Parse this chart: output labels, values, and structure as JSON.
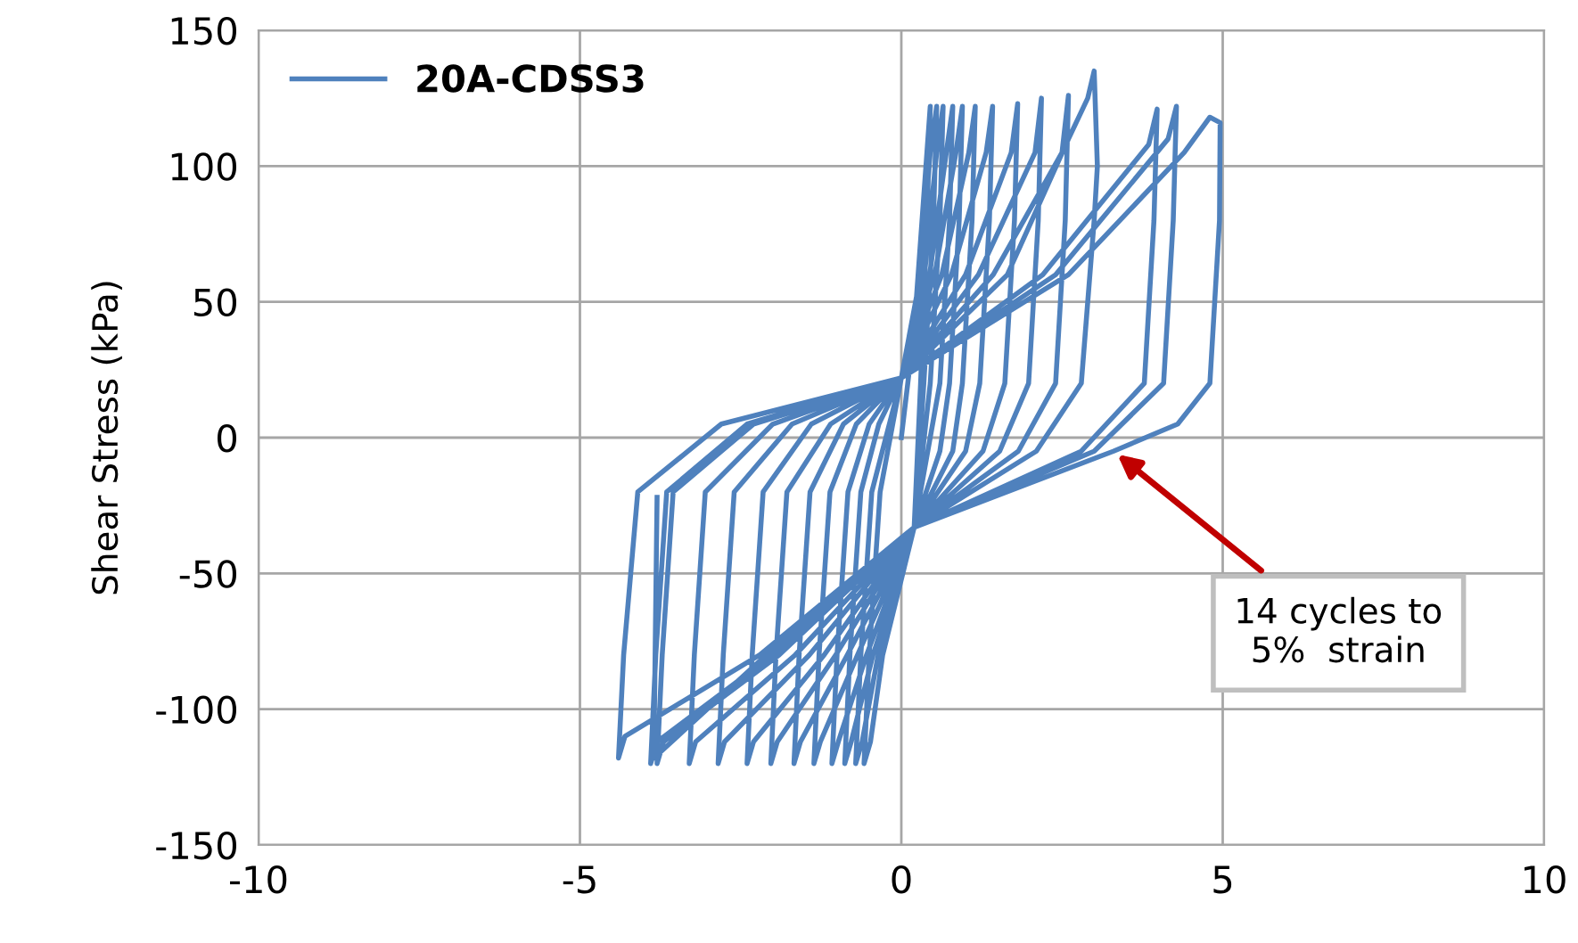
{
  "chart_data": {
    "type": "line",
    "ylabel": "Shear Stress (kPa)",
    "xlim": [
      -10,
      10
    ],
    "xticks": [
      -10,
      -5,
      0,
      5,
      10
    ],
    "ylim": [
      -150,
      150
    ],
    "yticks": [
      -150,
      -100,
      -50,
      0,
      50,
      100,
      150
    ],
    "grid": true,
    "legend": "top left",
    "marker": "none",
    "line_style": "solid",
    "series": [
      {
        "name": "20A-CDSS3",
        "color": "#4f81bd",
        "x": [
          0,
          0.2,
          0.45,
          0.4,
          0.3,
          0.2,
          -0.29,
          -0.48,
          -0.58,
          -0.5,
          -0.33,
          0,
          0.3,
          0.45,
          0.55,
          0.5,
          0.35,
          0.2,
          -0.36,
          -0.61,
          -0.71,
          -0.63,
          -0.46,
          0,
          0.36,
          0.55,
          0.65,
          0.6,
          0.45,
          0.2,
          -0.44,
          -0.78,
          -0.88,
          -0.8,
          -0.63,
          -0.35,
          0,
          0.44,
          0.7,
          0.8,
          0.75,
          0.6,
          0.2,
          -0.54,
          -0.98,
          -1.08,
          -1.0,
          -0.83,
          -0.5,
          0,
          0.52,
          0.85,
          0.95,
          0.9,
          0.75,
          0.6,
          0.2,
          -0.68,
          -1.26,
          -1.36,
          -1.28,
          -1.11,
          -0.7,
          0,
          0.63,
          1.05,
          1.15,
          1.1,
          0.95,
          0.8,
          0.2,
          -0.84,
          -1.57,
          -1.67,
          -1.59,
          -1.42,
          -0.9,
          0,
          0.78,
          1.32,
          1.42,
          1.37,
          1.22,
          1.0,
          0.2,
          -1.02,
          -1.93,
          -2.03,
          -1.95,
          -1.78,
          -1.1,
          0,
          1.0,
          1.71,
          1.81,
          1.76,
          1.61,
          1.27,
          0.2,
          -1.2,
          -2.3,
          -2.4,
          -2.32,
          -2.15,
          -1.4,
          0,
          1.2,
          2.08,
          2.18,
          2.13,
          1.98,
          1.53,
          0.2,
          -1.43,
          -2.75,
          -2.85,
          -2.77,
          -2.6,
          -1.7,
          0,
          1.43,
          2.5,
          2.6,
          2.55,
          2.4,
          1.82,
          0.2,
          -1.65,
          -3.2,
          -3.3,
          -3.22,
          -3.05,
          -2.0,
          0,
          1.65,
          2.6,
          2.9,
          3.0,
          3.05,
          3.0,
          2.8,
          2.1,
          0.2,
          -1.9,
          -3.7,
          -3.8,
          -3.72,
          -3.55,
          -2.3,
          0,
          2.2,
          3.85,
          3.98,
          3.93,
          3.78,
          2.8,
          0.2,
          -2.0,
          -3.8,
          -3.9,
          -3.82,
          -3.65,
          -2.4,
          0,
          2.4,
          4.15,
          4.28,
          4.23,
          4.08,
          3.0,
          0.2,
          -2.2,
          -4.3,
          -4.4,
          -4.32,
          -4.1,
          -2.8,
          0,
          2.6,
          4.4,
          4.8,
          4.96,
          4.95,
          4.8,
          4.3,
          3.3,
          0.2,
          -2.1,
          -3.85,
          -3.8
        ],
        "values": [
          0,
          40,
          122,
          80,
          20,
          -33,
          -80,
          -112,
          -120,
          -80,
          -20,
          22,
          60,
          105,
          122,
          80,
          20,
          -33,
          -80,
          -112,
          -120,
          -80,
          -20,
          22,
          60,
          105,
          122,
          80,
          20,
          -33,
          -80,
          -112,
          -120,
          -80,
          -20,
          5,
          22,
          60,
          105,
          122,
          80,
          20,
          -33,
          -80,
          -112,
          -120,
          -80,
          -20,
          5,
          22,
          60,
          105,
          122,
          80,
          20,
          -5,
          -33,
          -80,
          -112,
          -120,
          -80,
          -20,
          5,
          22,
          60,
          105,
          122,
          80,
          20,
          -5,
          -33,
          -80,
          -112,
          -120,
          -80,
          -20,
          5,
          22,
          60,
          105,
          122,
          80,
          20,
          -5,
          -33,
          -80,
          -112,
          -120,
          -80,
          -20,
          5,
          22,
          60,
          105,
          123,
          80,
          20,
          -5,
          -33,
          -80,
          -112,
          -120,
          -80,
          -20,
          5,
          22,
          60,
          105,
          125,
          80,
          20,
          -5,
          -33,
          -80,
          -112,
          -120,
          -80,
          -20,
          5,
          22,
          60,
          105,
          126,
          80,
          20,
          -5,
          -33,
          -80,
          -112,
          -120,
          -80,
          -20,
          5,
          22,
          60,
          110,
          125,
          135,
          100,
          80,
          20,
          -5,
          -33,
          -80,
          -112,
          -120,
          -80,
          -20,
          5,
          22,
          60,
          108,
          121,
          80,
          20,
          -5,
          -33,
          -80,
          -112,
          -120,
          -80,
          -20,
          5,
          22,
          60,
          110,
          122,
          80,
          20,
          -5,
          -33,
          -80,
          -110,
          -118,
          -80,
          -20,
          5,
          22,
          60,
          105,
          118,
          116,
          80,
          20,
          5,
          -5,
          -33,
          -80,
          -118,
          -22
        ]
      }
    ],
    "annotations": [
      {
        "text": "14 cycles to\n5%  strain",
        "x": 3.3,
        "y": -5
      }
    ]
  }
}
